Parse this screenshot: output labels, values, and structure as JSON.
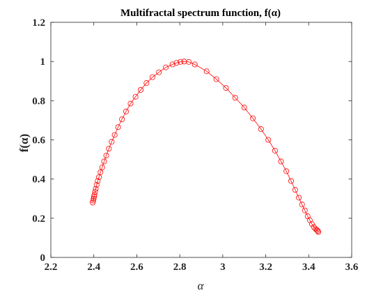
{
  "chart_data": {
    "type": "line",
    "title": "Multifractal spectrum function, f(α)",
    "xlabel": "α",
    "ylabel": "f(α)",
    "xlim": [
      2.2,
      3.6
    ],
    "ylim": [
      0,
      1.2
    ],
    "xticks": [
      2.2,
      2.4,
      2.6,
      2.8,
      3.0,
      3.2,
      3.4,
      3.6
    ],
    "xtick_labels": [
      "2.2",
      "2.4",
      "2.6",
      "2.8",
      "3",
      "3.2",
      "3.4",
      "3.6"
    ],
    "yticks": [
      0,
      0.2,
      0.4,
      0.6,
      0.8,
      1.0,
      1.2
    ],
    "ytick_labels": [
      "0",
      "0.2",
      "0.4",
      "0.6",
      "0.8",
      "1",
      "1.2"
    ],
    "grid": false,
    "series": [
      {
        "color": "#ff0000",
        "marker": "circle-open",
        "line": "solid",
        "points": [
          [
            2.395,
            0.28
          ],
          [
            2.397,
            0.29
          ],
          [
            2.399,
            0.3
          ],
          [
            2.401,
            0.31
          ],
          [
            2.403,
            0.32
          ],
          [
            2.406,
            0.335
          ],
          [
            2.409,
            0.35
          ],
          [
            2.413,
            0.37
          ],
          [
            2.418,
            0.39
          ],
          [
            2.424,
            0.41
          ],
          [
            2.431,
            0.435
          ],
          [
            2.439,
            0.46
          ],
          [
            2.448,
            0.49
          ],
          [
            2.458,
            0.52
          ],
          [
            2.47,
            0.555
          ],
          [
            2.483,
            0.59
          ],
          [
            2.497,
            0.625
          ],
          [
            2.513,
            0.665
          ],
          [
            2.531,
            0.705
          ],
          [
            2.55,
            0.745
          ],
          [
            2.571,
            0.785
          ],
          [
            2.594,
            0.82
          ],
          [
            2.618,
            0.855
          ],
          [
            2.645,
            0.89
          ],
          [
            2.673,
            0.92
          ],
          [
            2.703,
            0.945
          ],
          [
            2.735,
            0.97
          ],
          [
            2.766,
            0.985
          ],
          [
            2.785,
            0.993
          ],
          [
            2.803,
            0.998
          ],
          [
            2.82,
            1.0
          ],
          [
            2.842,
            0.998
          ],
          [
            2.87,
            0.985
          ],
          [
            2.925,
            0.95
          ],
          [
            2.97,
            0.91
          ],
          [
            3.015,
            0.865
          ],
          [
            3.058,
            0.815
          ],
          [
            3.1,
            0.765
          ],
          [
            3.14,
            0.71
          ],
          [
            3.178,
            0.655
          ],
          [
            3.212,
            0.6
          ],
          [
            3.243,
            0.545
          ],
          [
            3.271,
            0.49
          ],
          [
            3.296,
            0.44
          ],
          [
            3.318,
            0.39
          ],
          [
            3.337,
            0.345
          ],
          [
            3.354,
            0.305
          ],
          [
            3.369,
            0.27
          ],
          [
            3.382,
            0.24
          ],
          [
            3.395,
            0.21
          ],
          [
            3.405,
            0.19
          ],
          [
            3.415,
            0.17
          ],
          [
            3.424,
            0.155
          ],
          [
            3.432,
            0.145
          ],
          [
            3.438,
            0.14
          ],
          [
            3.442,
            0.135
          ],
          [
            3.445,
            0.13
          ]
        ]
      }
    ]
  }
}
